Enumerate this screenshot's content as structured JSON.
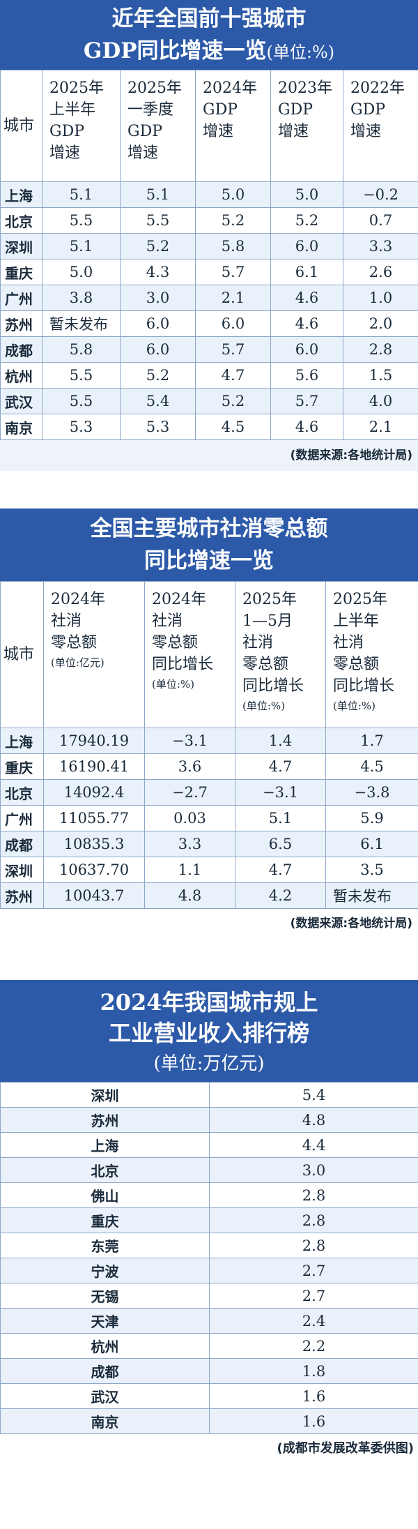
{
  "table1": {
    "title_line1": "近年全国前十强城市",
    "title_line2": "GDP同比增速一览",
    "title_unit": "(单位:%)",
    "headers": [
      "城市",
      "2025年上半年GDP增速",
      "2025年一季度GDP增速",
      "2024年GDP增速",
      "2023年GDP增速",
      "2022年GDP增速"
    ],
    "header_lines": [
      [
        "城市"
      ],
      [
        "2025年",
        "上半年",
        "GDP",
        "增速"
      ],
      [
        "2025年",
        "一季度",
        "GDP",
        "增速"
      ],
      [
        "2024年",
        "GDP",
        "增速"
      ],
      [
        "2023年",
        "GDP",
        "增速"
      ],
      [
        "2022年",
        "GDP",
        "增速"
      ]
    ],
    "rows": [
      [
        "上海",
        "5.1",
        "5.1",
        "5.0",
        "5.0",
        "−0.2"
      ],
      [
        "北京",
        "5.5",
        "5.5",
        "5.2",
        "5.2",
        "0.7"
      ],
      [
        "深圳",
        "5.1",
        "5.2",
        "5.8",
        "6.0",
        "3.3"
      ],
      [
        "重庆",
        "5.0",
        "4.3",
        "5.7",
        "6.1",
        "2.6"
      ],
      [
        "广州",
        "3.8",
        "3.0",
        "2.1",
        "4.6",
        "1.0"
      ],
      [
        "苏州",
        "暂未发布",
        "6.0",
        "6.0",
        "4.6",
        "2.0"
      ],
      [
        "成都",
        "5.8",
        "6.0",
        "5.7",
        "6.0",
        "2.8"
      ],
      [
        "杭州",
        "5.5",
        "5.2",
        "4.7",
        "5.6",
        "1.5"
      ],
      [
        "武汉",
        "5.5",
        "5.4",
        "5.2",
        "5.7",
        "4.0"
      ],
      [
        "南京",
        "5.3",
        "5.3",
        "4.5",
        "4.6",
        "2.1"
      ]
    ],
    "source": "(数据来源:各地统计局)"
  },
  "table2": {
    "title_line1": "全国主要城市社消零总额",
    "title_line2": "同比增速一览",
    "header_lines": [
      [
        "城市"
      ],
      [
        "2024年",
        "社消",
        "零总额",
        "(单位:亿元)"
      ],
      [
        "2024年",
        "社消",
        "零总额",
        "同比增长",
        "(单位:%)"
      ],
      [
        "2025年",
        "1—5月",
        "社消",
        "零总额",
        "同比增长",
        "(单位:%)"
      ],
      [
        "2025年",
        "上半年",
        "社消",
        "零总额",
        "同比增长",
        "(单位:%)"
      ]
    ],
    "rows": [
      [
        "上海",
        "17940.19",
        "−3.1",
        "1.4",
        "1.7"
      ],
      [
        "重庆",
        "16190.41",
        "3.6",
        "4.7",
        "4.5"
      ],
      [
        "北京",
        "14092.4",
        "−2.7",
        "−3.1",
        "−3.8"
      ],
      [
        "广州",
        "11055.77",
        "0.03",
        "5.1",
        "5.9"
      ],
      [
        "成都",
        "10835.3",
        "3.3",
        "6.5",
        "6.1"
      ],
      [
        "深圳",
        "10637.70",
        "1.1",
        "4.7",
        "3.5"
      ],
      [
        "苏州",
        "10043.7",
        "4.8",
        "4.2",
        "暂未发布"
      ]
    ],
    "source": "(数据来源:各地统计局)"
  },
  "table3": {
    "title_line1": "2024年我国城市规上",
    "title_line2": "工业营业收入排行榜",
    "title_unit": "(单位:万亿元)",
    "rows": [
      [
        "深圳",
        "5.4"
      ],
      [
        "苏州",
        "4.8"
      ],
      [
        "上海",
        "4.4"
      ],
      [
        "北京",
        "3.0"
      ],
      [
        "佛山",
        "2.8"
      ],
      [
        "重庆",
        "2.8"
      ],
      [
        "东莞",
        "2.8"
      ],
      [
        "宁波",
        "2.7"
      ],
      [
        "无锡",
        "2.7"
      ],
      [
        "天津",
        "2.4"
      ],
      [
        "杭州",
        "2.2"
      ],
      [
        "成都",
        "1.8"
      ],
      [
        "武汉",
        "1.6"
      ],
      [
        "南京",
        "1.6"
      ]
    ],
    "credit": "(成都市发展改革委供图)"
  }
}
